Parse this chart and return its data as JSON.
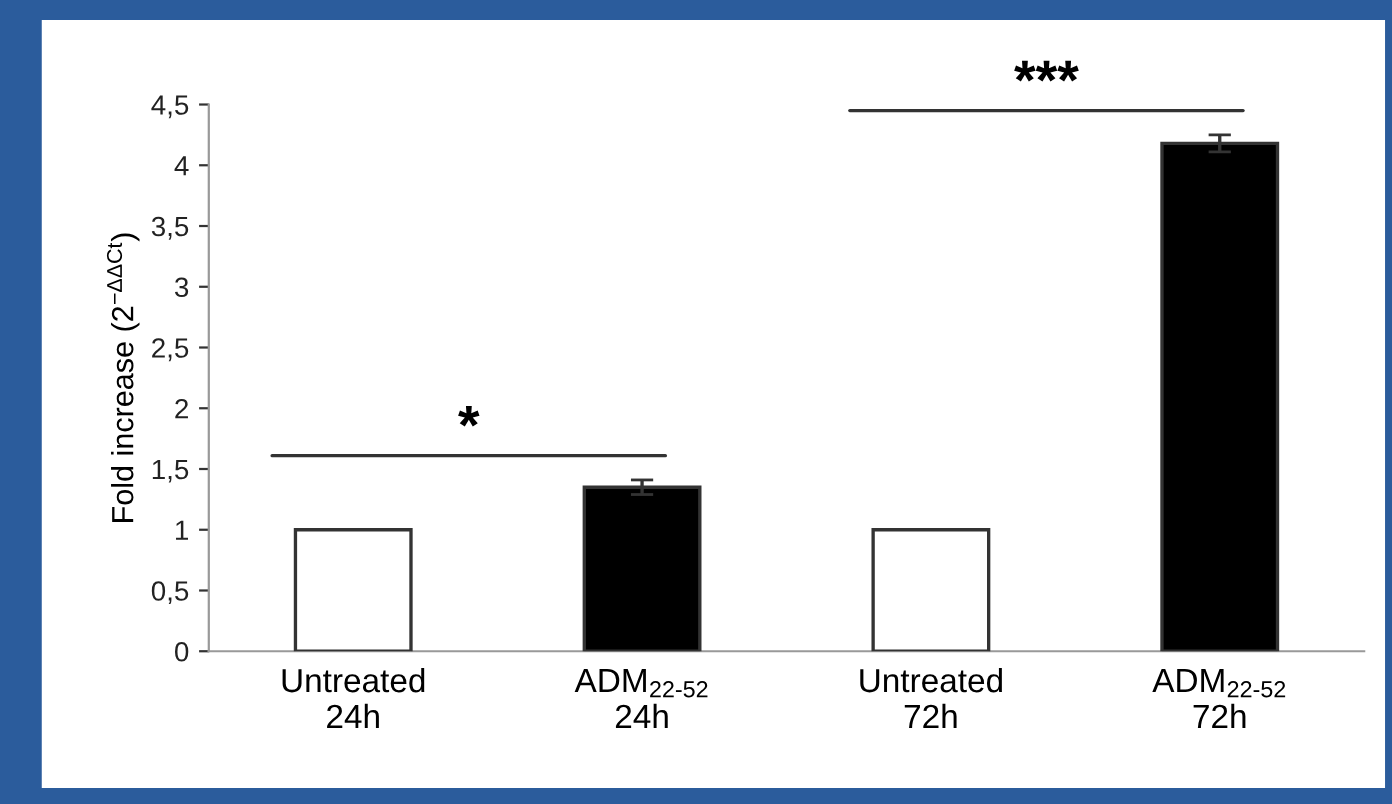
{
  "chart_data": {
    "type": "bar",
    "ylabel": "Fold increase (2$^{−ΔΔCt}$)",
    "categories": [
      "Untreated\n24h",
      "ADM$_{22-52}$\n24h",
      "Untreated\n72h",
      "ADM$_{22-52}$\n72h"
    ],
    "values": [
      1,
      1.35,
      1,
      4.18
    ],
    "errors": [
      null,
      0.06,
      null,
      0.07
    ],
    "colors": [
      "#ffffff",
      "#000000",
      "#ffffff",
      "#000000"
    ],
    "ylim": [
      0,
      4.5
    ],
    "yticks": [
      0,
      {
        "value": 0.5,
        "label": "0,5"
      },
      1,
      {
        "value": 1.5,
        "label": "1,5"
      },
      2,
      {
        "value": 2.5,
        "label": "2,5"
      },
      3,
      {
        "value": 3.5,
        "label": "3,5"
      },
      4,
      {
        "value": 4.5,
        "label": "4,5"
      }
    ],
    "annotations": [
      "*",
      "***"
    ],
    "grid": false,
    "legend": false
  }
}
